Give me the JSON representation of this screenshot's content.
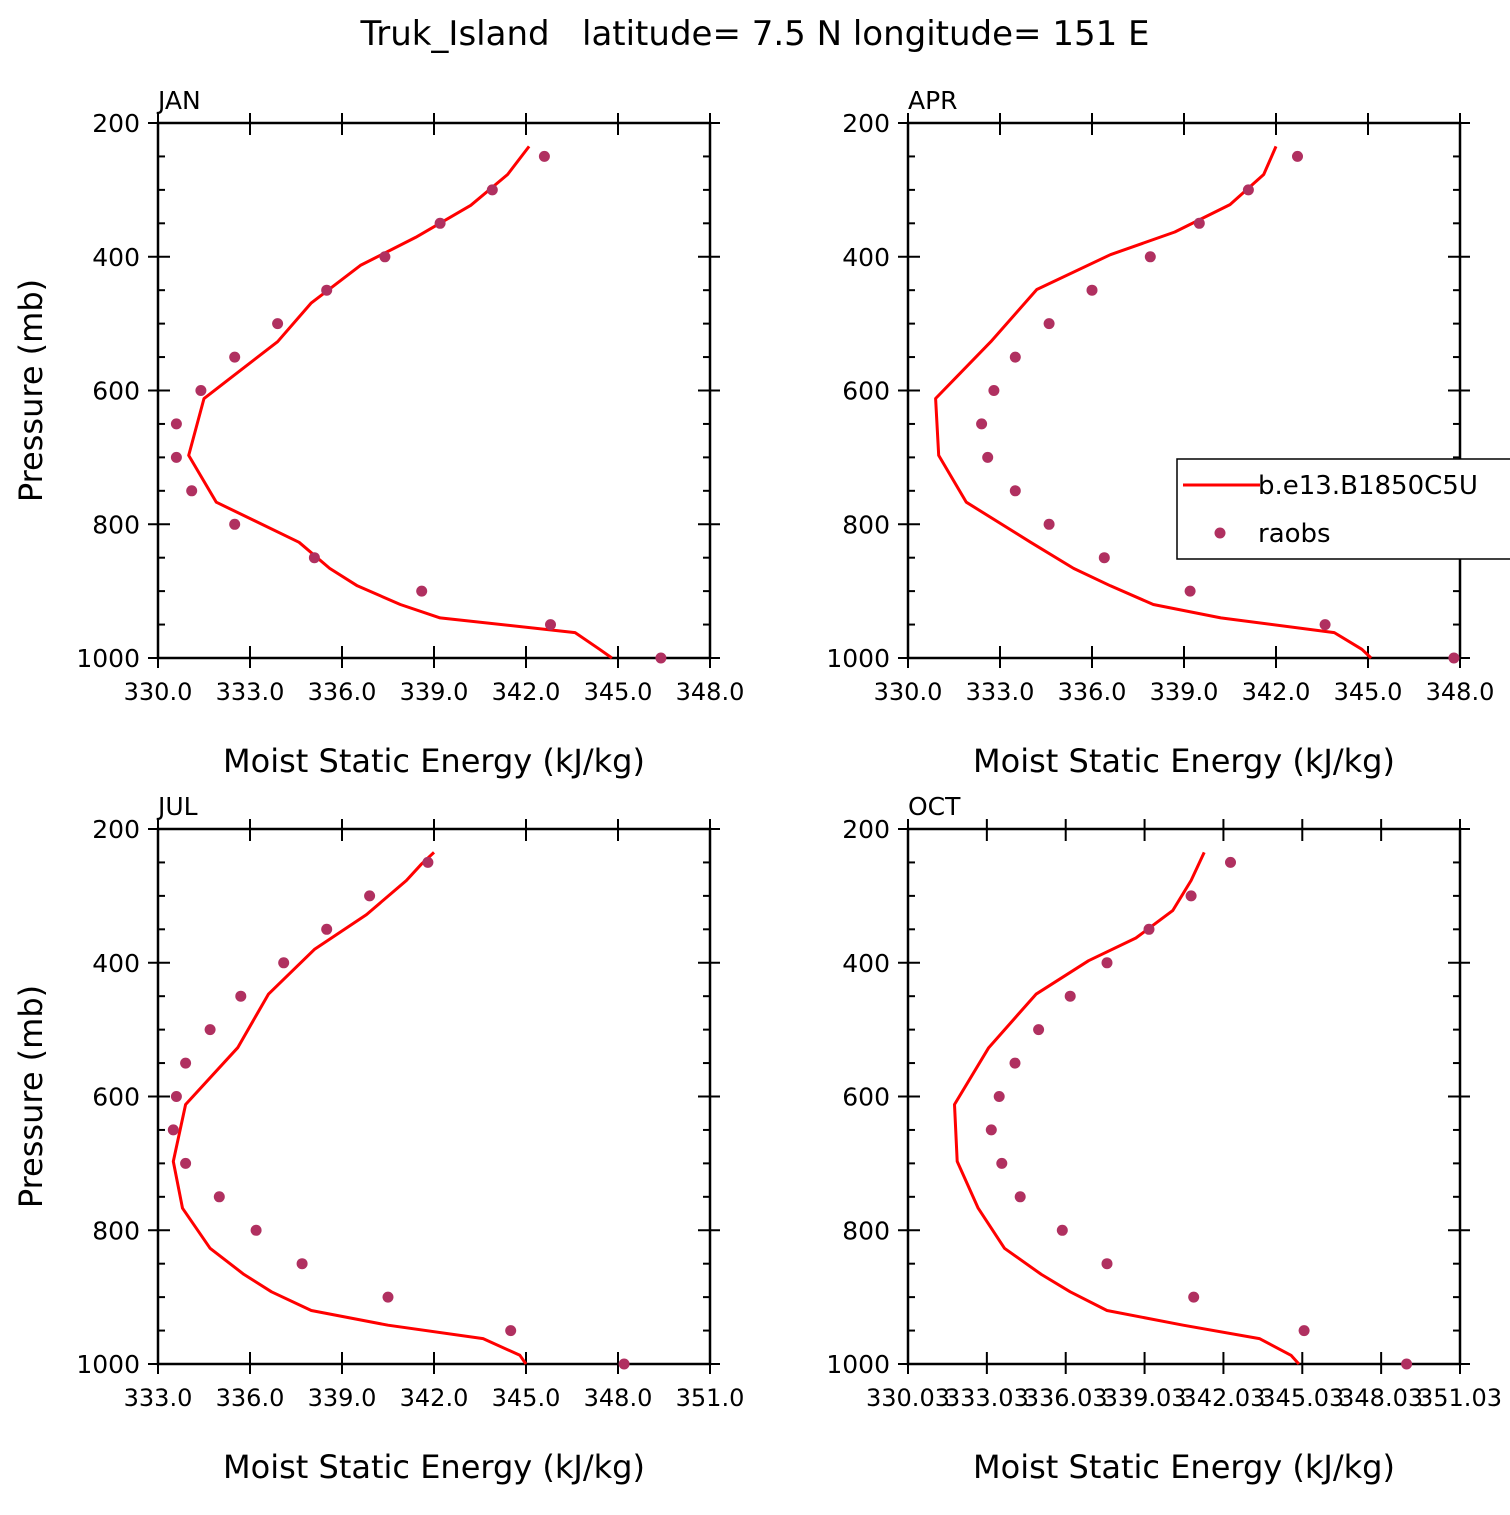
{
  "title": "Truk_Island   latitude= 7.5 N longitude= 151 E",
  "colors": {
    "model_line": "#ff0000",
    "obs_marker": "#b03060"
  },
  "legend": {
    "location": "inside APR panel, right edge (clipped)",
    "entries": [
      "b.e13.B1850C5U",
      "raobs"
    ]
  },
  "chart_data": [
    {
      "type": "line",
      "panel_label": "JAN",
      "xlabel": "Moist Static Energy (kJ/kg)",
      "ylabel": "Pressure (mb)",
      "xlim": [
        330,
        348
      ],
      "ylim": [
        1000,
        200
      ],
      "y_scale": "linear, inverted",
      "x_ticks": [
        "330.0",
        "333.0",
        "336.0",
        "339.0",
        "342.0",
        "345.0",
        "348.0"
      ],
      "y_ticks": [
        "200",
        "400",
        "600",
        "800",
        "1000"
      ],
      "series": [
        {
          "name": "b.e13.B1850C5U",
          "style": "line",
          "x": [
            344.8,
            344.4,
            343.6,
            339.2,
            337.9,
            336.5,
            335.6,
            334.6,
            331.9,
            331.0,
            331.5,
            333.9,
            335.0,
            336.6,
            338.4,
            340.2,
            341.4,
            342.1
          ],
          "y": [
            1000,
            987,
            962,
            940,
            920,
            892,
            866,
            827,
            767,
            697,
            612,
            527,
            469,
            413,
            371,
            323,
            277,
            235
          ]
        },
        {
          "name": "raobs",
          "style": "markers",
          "x": [
            346.4,
            342.8,
            338.6,
            335.1,
            332.5,
            331.1,
            330.6,
            330.6,
            331.4,
            332.5,
            333.9,
            335.5,
            337.4,
            339.2,
            340.9,
            342.6
          ],
          "y": [
            1000,
            950,
            900,
            850,
            800,
            750,
            700,
            650,
            600,
            550,
            500,
            450,
            400,
            350,
            300,
            250
          ]
        }
      ]
    },
    {
      "type": "line",
      "panel_label": "APR",
      "xlabel": "Moist Static Energy (kJ/kg)",
      "ylabel": "",
      "xlim": [
        330,
        348
      ],
      "ylim": [
        1000,
        200
      ],
      "y_scale": "linear, inverted",
      "x_ticks": [
        "330.0",
        "333.0",
        "336.0",
        "339.0",
        "342.0",
        "345.0",
        "348.0"
      ],
      "y_ticks": [
        "200",
        "400",
        "600",
        "800",
        "1000"
      ],
      "series": [
        {
          "name": "b.e13.B1850C5U",
          "style": "line",
          "x": [
            345.1,
            344.8,
            343.9,
            340.2,
            338.0,
            336.6,
            335.4,
            334.0,
            331.9,
            331.0,
            330.9,
            332.7,
            334.2,
            336.6,
            338.7,
            340.5,
            341.6,
            342.0
          ],
          "y": [
            1000,
            987,
            962,
            940,
            920,
            892,
            866,
            827,
            767,
            697,
            612,
            527,
            449,
            397,
            363,
            322,
            277,
            235
          ]
        },
        {
          "name": "raobs",
          "style": "markers",
          "x": [
            347.8,
            343.6,
            339.2,
            336.4,
            334.6,
            333.5,
            332.6,
            332.4,
            332.8,
            333.5,
            334.6,
            336.0,
            337.9,
            339.5,
            341.1,
            342.7
          ],
          "y": [
            1000,
            950,
            900,
            850,
            800,
            750,
            700,
            650,
            600,
            550,
            500,
            450,
            400,
            350,
            300,
            250
          ]
        }
      ]
    },
    {
      "type": "line",
      "panel_label": "JUL",
      "xlabel": "Moist Static Energy (kJ/kg)",
      "ylabel": "Pressure (mb)",
      "xlim": [
        333,
        351
      ],
      "ylim": [
        1000,
        200
      ],
      "y_scale": "linear, inverted",
      "x_ticks": [
        "333.0",
        "336.0",
        "339.0",
        "342.0",
        "345.0",
        "348.0",
        "351.0"
      ],
      "y_ticks": [
        "200",
        "400",
        "600",
        "800",
        "1000"
      ],
      "series": [
        {
          "name": "b.e13.B1850C5U",
          "style": "line",
          "x": [
            345.0,
            344.8,
            343.6,
            340.5,
            338.0,
            336.7,
            335.8,
            334.7,
            333.8,
            333.5,
            333.9,
            335.6,
            336.6,
            338.1,
            339.8,
            341.1,
            341.6,
            342.0
          ],
          "y": [
            1000,
            987,
            962,
            942,
            920,
            892,
            866,
            827,
            767,
            697,
            612,
            527,
            447,
            380,
            328,
            277,
            252,
            235
          ]
        },
        {
          "name": "raobs",
          "style": "markers",
          "x": [
            348.2,
            344.5,
            340.5,
            337.7,
            336.2,
            335.0,
            333.9,
            333.5,
            333.6,
            333.9,
            334.7,
            335.7,
            337.1,
            338.5,
            339.9,
            341.8
          ],
          "y": [
            1000,
            950,
            900,
            850,
            800,
            750,
            700,
            650,
            600,
            550,
            500,
            450,
            400,
            350,
            300,
            250
          ]
        }
      ]
    },
    {
      "type": "line",
      "panel_label": "OCT",
      "xlabel": "Moist Static Energy (kJ/kg)",
      "ylabel": "",
      "xlim": [
        330.03,
        351.03
      ],
      "ylim": [
        1000,
        200
      ],
      "y_scale": "linear, inverted",
      "x_ticks": [
        "330.03",
        "333.03",
        "336.03",
        "339.03",
        "342.03",
        "345.03",
        "348.03",
        "351.03"
      ],
      "y_ticks": [
        "200",
        "400",
        "600",
        "800",
        "1000"
      ],
      "series": [
        {
          "name": "b.e13.B1850C5U",
          "style": "line",
          "x": [
            344.9,
            344.6,
            343.4,
            340.5,
            337.6,
            336.2,
            335.1,
            333.7,
            332.7,
            331.9,
            331.8,
            333.1,
            334.9,
            336.9,
            338.7,
            340.1,
            340.8,
            341.3
          ],
          "y": [
            1000,
            987,
            962,
            942,
            920,
            892,
            866,
            827,
            767,
            697,
            612,
            527,
            447,
            397,
            363,
            322,
            277,
            235
          ]
        },
        {
          "name": "raobs",
          "style": "markers",
          "x": [
            349.0,
            345.1,
            340.9,
            337.6,
            335.9,
            334.3,
            333.6,
            333.2,
            333.5,
            334.1,
            335.0,
            336.2,
            337.6,
            339.2,
            340.8,
            342.3
          ],
          "y": [
            1000,
            950,
            900,
            850,
            800,
            750,
            700,
            650,
            600,
            550,
            500,
            450,
            400,
            350,
            300,
            250
          ]
        }
      ]
    }
  ]
}
